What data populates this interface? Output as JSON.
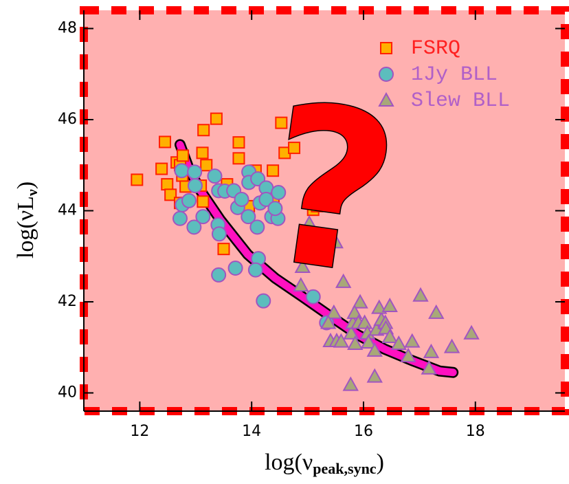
{
  "chart_data": {
    "type": "scatter",
    "x_label": [
      "log(ν",
      "peak,sync",
      ")"
    ],
    "y_label": [
      "log(νL",
      "ν",
      ")"
    ],
    "annotation": "?",
    "xlim": [
      11.0,
      19.6
    ],
    "ylim": [
      39.6,
      48.4
    ],
    "xticks": [
      12,
      14,
      16,
      18
    ],
    "yticks": [
      40,
      42,
      44,
      46,
      48
    ],
    "background": "#ffb0b0",
    "border_color": "#ff0000",
    "legend": "upper right",
    "series": [
      {
        "name": "FSRQ",
        "marker": "square",
        "color": "#ffb000",
        "edge": "#ff2000",
        "label_color": "#ff2020",
        "x": [
          11.95,
          12.45,
          12.39,
          12.49,
          12.55,
          12.66,
          12.72,
          12.76,
          12.82,
          12.77,
          13.14,
          13.37,
          13.12,
          13.19,
          13.13,
          13.56,
          13.77,
          13.77,
          13.5,
          14.53,
          14.59,
          14.38,
          14.07,
          14.39,
          13.95,
          14.76,
          15.1,
          15.17,
          13.09,
          12.72
        ],
        "values": [
          44.68,
          45.51,
          44.92,
          44.58,
          44.35,
          45.06,
          45.0,
          44.77,
          44.53,
          45.21,
          45.77,
          46.02,
          45.27,
          45.0,
          44.2,
          44.58,
          45.15,
          45.5,
          43.16,
          45.93,
          45.27,
          44.88,
          44.88,
          44.28,
          44.1,
          45.38,
          44.02,
          44.1,
          44.55,
          44.17
        ]
      },
      {
        "name": "1Jy BLL",
        "marker": "circle",
        "color": "#5cbdbd",
        "edge": "#a055c0",
        "label_color": "#b060c8",
        "x": [
          12.75,
          12.98,
          12.99,
          12.76,
          12.88,
          12.72,
          12.97,
          13.13,
          13.34,
          13.41,
          13.52,
          13.4,
          13.42,
          13.75,
          13.68,
          13.82,
          13.95,
          13.95,
          13.94,
          13.41,
          13.71,
          14.12,
          14.1,
          14.15,
          14.11,
          14.26,
          14.26,
          14.36,
          14.47,
          14.48,
          14.07,
          14.21,
          15.1,
          15.34,
          14.42
        ],
        "values": [
          44.88,
          44.85,
          44.55,
          44.13,
          44.22,
          43.83,
          43.64,
          43.87,
          44.76,
          44.44,
          44.43,
          43.69,
          43.49,
          44.07,
          44.44,
          44.25,
          44.85,
          44.62,
          43.87,
          42.59,
          42.74,
          42.95,
          43.64,
          44.17,
          44.7,
          44.5,
          44.25,
          43.87,
          43.83,
          44.4,
          42.7,
          42.02,
          42.11,
          41.54,
          44.05
        ]
      },
      {
        "name": "Slew BLL",
        "marker": "triangle",
        "color": "#a8a878",
        "edge": "#a055c0",
        "label_color": "#b060c8",
        "x": [
          15.03,
          15.25,
          14.91,
          15.5,
          15.64,
          14.88,
          15.47,
          15.37,
          15.41,
          15.52,
          15.6,
          15.78,
          15.81,
          15.94,
          15.84,
          15.91,
          15.77,
          16.02,
          16.07,
          16.09,
          16.2,
          16.2,
          16.23,
          16.32,
          16.28,
          16.39,
          16.4,
          16.47,
          16.63,
          16.47,
          16.87,
          17.02,
          17.3,
          17.21,
          17.17,
          17.58,
          17.93,
          16.8,
          15.85
        ],
        "values": [
          43.72,
          43.07,
          42.77,
          43.31,
          42.44,
          42.36,
          41.76,
          41.54,
          41.14,
          41.14,
          41.13,
          41.31,
          41.54,
          41.99,
          41.76,
          41.54,
          40.18,
          41.54,
          41.31,
          41.11,
          40.93,
          40.36,
          41.39,
          41.61,
          41.87,
          41.54,
          41.42,
          41.23,
          41.08,
          41.91,
          41.13,
          42.14,
          41.76,
          40.9,
          40.54,
          41.01,
          41.31,
          40.81,
          41.08
        ]
      }
    ],
    "curve": {
      "color": "#ff10c0",
      "x": [
        12.72,
        12.88,
        13.07,
        13.44,
        13.93,
        14.42,
        14.91,
        15.4,
        15.89,
        16.38,
        16.87,
        17.36,
        17.6
      ],
      "values": [
        45.45,
        44.92,
        44.47,
        43.8,
        43.04,
        42.52,
        42.11,
        41.69,
        41.28,
        40.96,
        40.71,
        40.48,
        40.45
      ]
    }
  }
}
